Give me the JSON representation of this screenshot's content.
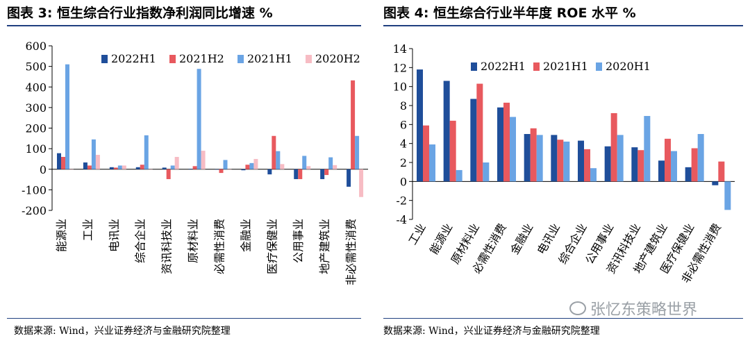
{
  "titles": {
    "left": "图表 3:  恒生综合行业指数净利润同比增速  %",
    "right": "图表 4:  恒生综合行业半年度 ROE 水平  %"
  },
  "sources": {
    "left": "数据来源:  Wind，兴业证券经济与金融研究院整理",
    "right": "数据来源:  Wind，兴业证券经济与金融研究院整理"
  },
  "watermark": "张忆东策略世界",
  "chart_data": [
    {
      "type": "bar",
      "title": "恒生综合行业指数净利润同比增速 %",
      "categories": [
        "能源业",
        "工业",
        "电讯业",
        "综合企业",
        "资讯科技业",
        "原材料业",
        "必需性消费",
        "金融业",
        "医疗保健业",
        "公用事业",
        "地产建筑业",
        "非必需性消费"
      ],
      "ylim": [
        -200,
        600
      ],
      "yticks": [
        -200,
        -100,
        0,
        100,
        200,
        300,
        400,
        500,
        600
      ],
      "legend_position": "top",
      "series": [
        {
          "name": "2022H1",
          "color": "#1f4e9a",
          "values": [
            78,
            33,
            10,
            10,
            8,
            2,
            0,
            -5,
            -25,
            -48,
            -48,
            -85
          ]
        },
        {
          "name": "2021H2",
          "color": "#e8595e",
          "values": [
            60,
            18,
            8,
            22,
            -48,
            15,
            -18,
            22,
            162,
            -48,
            -28,
            432
          ]
        },
        {
          "name": "2021H1",
          "color": "#6aa4e4",
          "values": [
            510,
            145,
            18,
            165,
            18,
            488,
            45,
            30,
            88,
            65,
            58,
            162
          ]
        },
        {
          "name": "2020H2",
          "color": "#f7bcc4",
          "values": [
            0,
            70,
            18,
            0,
            60,
            90,
            0,
            50,
            25,
            15,
            20,
            -135
          ]
        }
      ]
    },
    {
      "type": "bar",
      "title": "恒生综合行业半年度 ROE 水平 %",
      "categories": [
        "工业",
        "能源业",
        "原材料业",
        "必需性消费",
        "金融业",
        "电讯业",
        "综合企业",
        "公用事业",
        "资讯科技业",
        "地产建筑业",
        "医疗保健业",
        "非必需性消费"
      ],
      "ylim": [
        -4,
        14
      ],
      "yticks": [
        -4,
        -2,
        0,
        2,
        4,
        6,
        8,
        10,
        12,
        14
      ],
      "legend_position": "top",
      "series": [
        {
          "name": "2022H1",
          "color": "#1f4e9a",
          "values": [
            11.8,
            10.6,
            8.7,
            7.8,
            5.0,
            4.9,
            4.3,
            3.7,
            3.6,
            2.2,
            1.5,
            -0.4
          ]
        },
        {
          "name": "2021H1",
          "color": "#e8595e",
          "values": [
            5.9,
            6.4,
            10.3,
            8.3,
            5.6,
            4.4,
            3.4,
            7.2,
            3.3,
            4.5,
            3.5,
            2.1
          ]
        },
        {
          "name": "2020H1",
          "color": "#6aa4e4",
          "values": [
            3.9,
            1.2,
            2.0,
            6.8,
            4.9,
            4.2,
            1.4,
            4.9,
            6.9,
            3.2,
            5.0,
            -3.0
          ]
        }
      ]
    }
  ]
}
